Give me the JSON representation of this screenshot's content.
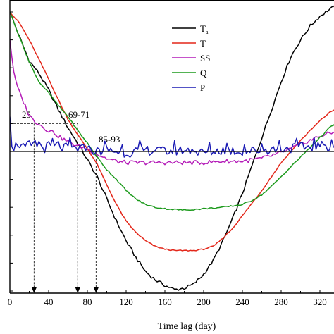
{
  "chart_data": {
    "type": "line",
    "xlabel": "Time lag (day)",
    "ylabel": "",
    "xlim": [
      0,
      340
    ],
    "ylim": [
      -1,
      1
    ],
    "xticks": [
      0,
      40,
      80,
      120,
      160,
      200,
      240,
      280,
      320
    ],
    "xtick_labels": [
      "0",
      "40",
      "80",
      "120",
      "160",
      "200",
      "240",
      "280",
      "320"
    ],
    "grid": false,
    "legend_position": "top-right",
    "series": [
      {
        "name": "Ta",
        "legend_main": "T",
        "legend_sub": "a",
        "color": "#000000",
        "x": [
          0,
          10,
          20,
          30,
          40,
          50,
          60,
          70,
          80,
          90,
          100,
          110,
          120,
          130,
          140,
          150,
          160,
          170,
          180,
          190,
          200,
          210,
          220,
          230,
          240,
          250,
          260,
          270,
          280,
          290,
          300,
          310,
          320,
          330,
          340
        ],
        "y": [
          1.0,
          0.82,
          0.65,
          0.56,
          0.44,
          0.3,
          0.17,
          0.06,
          -0.06,
          -0.18,
          -0.34,
          -0.5,
          -0.64,
          -0.76,
          -0.86,
          -0.92,
          -0.96,
          -0.99,
          -0.98,
          -0.95,
          -0.88,
          -0.78,
          -0.64,
          -0.48,
          -0.3,
          -0.1,
          0.1,
          0.3,
          0.5,
          0.68,
          0.8,
          0.9,
          0.97,
          1.02,
          1.05
        ]
      },
      {
        "name": "T",
        "color": "#e32619",
        "x": [
          0,
          10,
          20,
          30,
          40,
          50,
          60,
          70,
          80,
          90,
          100,
          110,
          120,
          130,
          140,
          150,
          160,
          170,
          180,
          190,
          200,
          210,
          220,
          230,
          240,
          250,
          260,
          270,
          280,
          290,
          300,
          310,
          320,
          330,
          340
        ],
        "y": [
          1.0,
          0.92,
          0.8,
          0.66,
          0.52,
          0.37,
          0.23,
          0.12,
          0.02,
          -0.09,
          -0.24,
          -0.38,
          -0.5,
          -0.58,
          -0.64,
          -0.68,
          -0.7,
          -0.71,
          -0.71,
          -0.71,
          -0.7,
          -0.68,
          -0.62,
          -0.55,
          -0.46,
          -0.37,
          -0.28,
          -0.18,
          -0.08,
          0.0,
          0.08,
          0.15,
          0.22,
          0.28,
          0.32
        ]
      },
      {
        "name": "SS",
        "color": "#b41cb8",
        "x": [
          0,
          3,
          6,
          10,
          15,
          20,
          25,
          30,
          35,
          40,
          45,
          50,
          55,
          60,
          70,
          80,
          90,
          100,
          110,
          120,
          130,
          140,
          160,
          180,
          200,
          220,
          240,
          260,
          270,
          280,
          290,
          300,
          310,
          320,
          330,
          340
        ],
        "y": [
          0.8,
          0.62,
          0.5,
          0.42,
          0.34,
          0.26,
          0.22,
          0.2,
          0.17,
          0.15,
          0.14,
          0.11,
          0.09,
          0.07,
          0.04,
          0.02,
          -0.02,
          -0.05,
          -0.07,
          -0.08,
          -0.08,
          -0.08,
          -0.08,
          -0.08,
          -0.08,
          -0.07,
          -0.07,
          -0.05,
          -0.03,
          -0.01,
          0.02,
          0.05,
          0.08,
          0.11,
          0.13,
          0.14
        ]
      },
      {
        "name": "Q",
        "color": "#1c9a1c",
        "x": [
          0,
          10,
          20,
          30,
          40,
          50,
          60,
          70,
          80,
          90,
          100,
          110,
          120,
          130,
          140,
          150,
          160,
          180,
          200,
          220,
          240,
          250,
          260,
          270,
          280,
          290,
          300,
          310,
          320,
          330,
          340
        ],
        "y": [
          1.0,
          0.82,
          0.64,
          0.5,
          0.42,
          0.33,
          0.25,
          0.15,
          0.06,
          -0.04,
          -0.13,
          -0.2,
          -0.28,
          -0.34,
          -0.38,
          -0.4,
          -0.41,
          -0.42,
          -0.41,
          -0.4,
          -0.38,
          -0.35,
          -0.31,
          -0.25,
          -0.18,
          -0.11,
          -0.04,
          0.03,
          0.1,
          0.17,
          0.22
        ]
      },
      {
        "name": "P",
        "color": "#1a1ab4",
        "x": [
          0,
          2,
          4,
          6,
          8,
          10,
          15,
          20,
          25,
          30,
          35,
          40,
          45,
          50,
          55,
          60,
          70,
          80,
          90,
          100,
          120,
          140,
          160,
          180,
          200,
          220,
          240,
          260,
          280,
          300,
          320,
          340
        ],
        "y": [
          0.25,
          0.06,
          0.03,
          0.04,
          0.02,
          0.05,
          0.02,
          0.05,
          0.03,
          0.06,
          0.02,
          0.04,
          0.03,
          0.05,
          0.02,
          0.03,
          0.02,
          0.02,
          0.0,
          0.01,
          -0.01,
          0.01,
          0.0,
          0.01,
          -0.01,
          0.01,
          0.0,
          0.01,
          0.02,
          0.03,
          0.04,
          0.04
        ]
      }
    ],
    "annotations": [
      {
        "label": "25",
        "x": 25,
        "y": 0.2
      },
      {
        "label": "69-71",
        "x": 70,
        "y": 0.2
      },
      {
        "label": "85-93",
        "x": 89,
        "y": 0.0
      }
    ],
    "reference_level": 0.2
  }
}
